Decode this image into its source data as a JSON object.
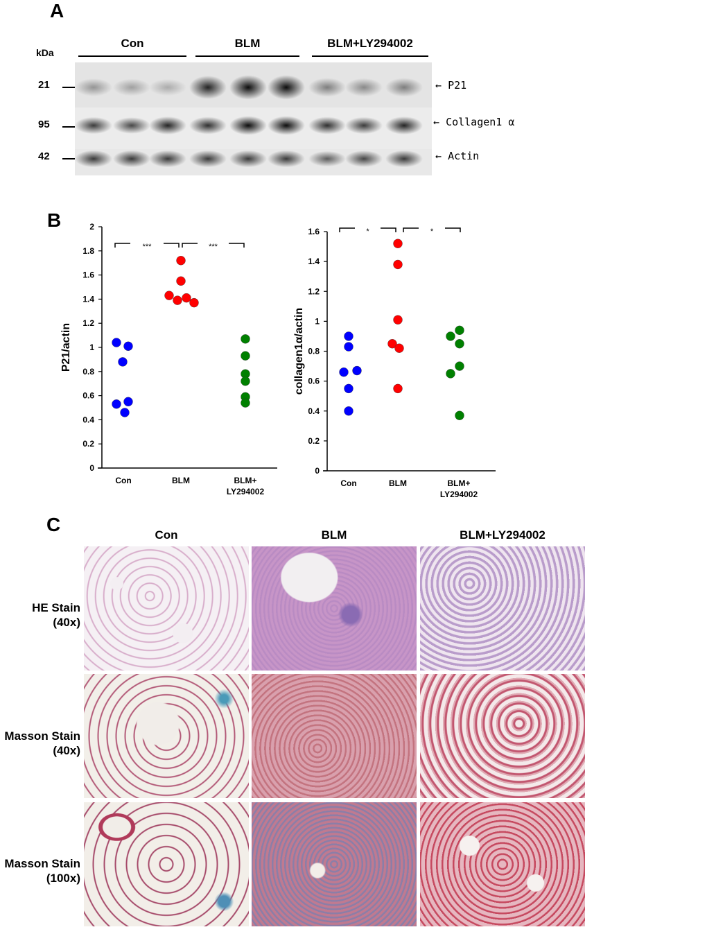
{
  "panel_a": {
    "letter": "A",
    "kda_label": "kDa",
    "groups": [
      "Con",
      "BLM",
      "BLM+LY294002"
    ],
    "markers": [
      "21",
      "95",
      "42"
    ],
    "bands": [
      {
        "label": "P21",
        "intensities": [
          0.35,
          0.3,
          0.25,
          0.85,
          0.95,
          0.95,
          0.45,
          0.4,
          0.45
        ]
      },
      {
        "label": "Collagen1 α",
        "intensities": [
          0.75,
          0.7,
          0.85,
          0.8,
          0.95,
          0.95,
          0.8,
          0.75,
          0.85
        ]
      },
      {
        "label": "Actin",
        "intensities": [
          0.75,
          0.75,
          0.75,
          0.75,
          0.75,
          0.75,
          0.6,
          0.7,
          0.75
        ]
      }
    ]
  },
  "panel_b": {
    "letter": "B"
  },
  "chart_data": [
    {
      "type": "scatter",
      "ylabel": "P21/actin",
      "categories": [
        "Con",
        "BLM",
        "BLM+\nLY294002"
      ],
      "category_lines": [
        [
          "Con"
        ],
        [
          "BLM"
        ],
        [
          "BLM+",
          "LY294002"
        ]
      ],
      "ylim": [
        0,
        2
      ],
      "yticks": [
        "0",
        "0.2",
        "0.4",
        "0.6",
        "0.8",
        "1",
        "1.2",
        "1.4",
        "1.6",
        "1.8",
        "2"
      ],
      "series": [
        {
          "color": "#0000ff",
          "values": [
            1.04,
            1.01,
            0.88,
            0.53,
            0.55,
            0.46
          ]
        },
        {
          "color": "#ff0000",
          "values": [
            1.72,
            1.55,
            1.43,
            1.39,
            1.41,
            1.37
          ]
        },
        {
          "color": "#008000",
          "values": [
            1.07,
            0.93,
            0.78,
            0.72,
            0.59,
            0.54
          ]
        }
      ],
      "significance": [
        "***",
        "***"
      ]
    },
    {
      "type": "scatter",
      "ylabel": "collagen1α/actin",
      "categories": [
        "Con",
        "BLM",
        "BLM+\nLY294002"
      ],
      "category_lines": [
        [
          "Con"
        ],
        [
          "BLM"
        ],
        [
          "BLM+",
          "LY294002"
        ]
      ],
      "ylim": [
        0,
        1.6
      ],
      "yticks": [
        "0",
        "0.2",
        "0.4",
        "0.6",
        "0.8",
        "1",
        "1.2",
        "1.4",
        "1.6"
      ],
      "series": [
        {
          "color": "#0000ff",
          "values": [
            0.9,
            0.83,
            0.66,
            0.67,
            0.55,
            0.4
          ]
        },
        {
          "color": "#ff0000",
          "values": [
            1.52,
            1.38,
            1.01,
            0.85,
            0.82,
            0.55
          ]
        },
        {
          "color": "#008000",
          "values": [
            0.94,
            0.9,
            0.85,
            0.7,
            0.65,
            0.37
          ]
        }
      ],
      "significance": [
        "*",
        "*"
      ]
    }
  ],
  "panel_c": {
    "letter": "C",
    "columns": [
      "Con",
      "BLM",
      "BLM+LY294002"
    ],
    "rows": [
      {
        "line1": "HE Stain",
        "line2": "(40x)"
      },
      {
        "line1": "Masson Stain",
        "line2": "(40x)"
      },
      {
        "line1": "Masson Stain",
        "line2": "(100x)"
      }
    ]
  }
}
